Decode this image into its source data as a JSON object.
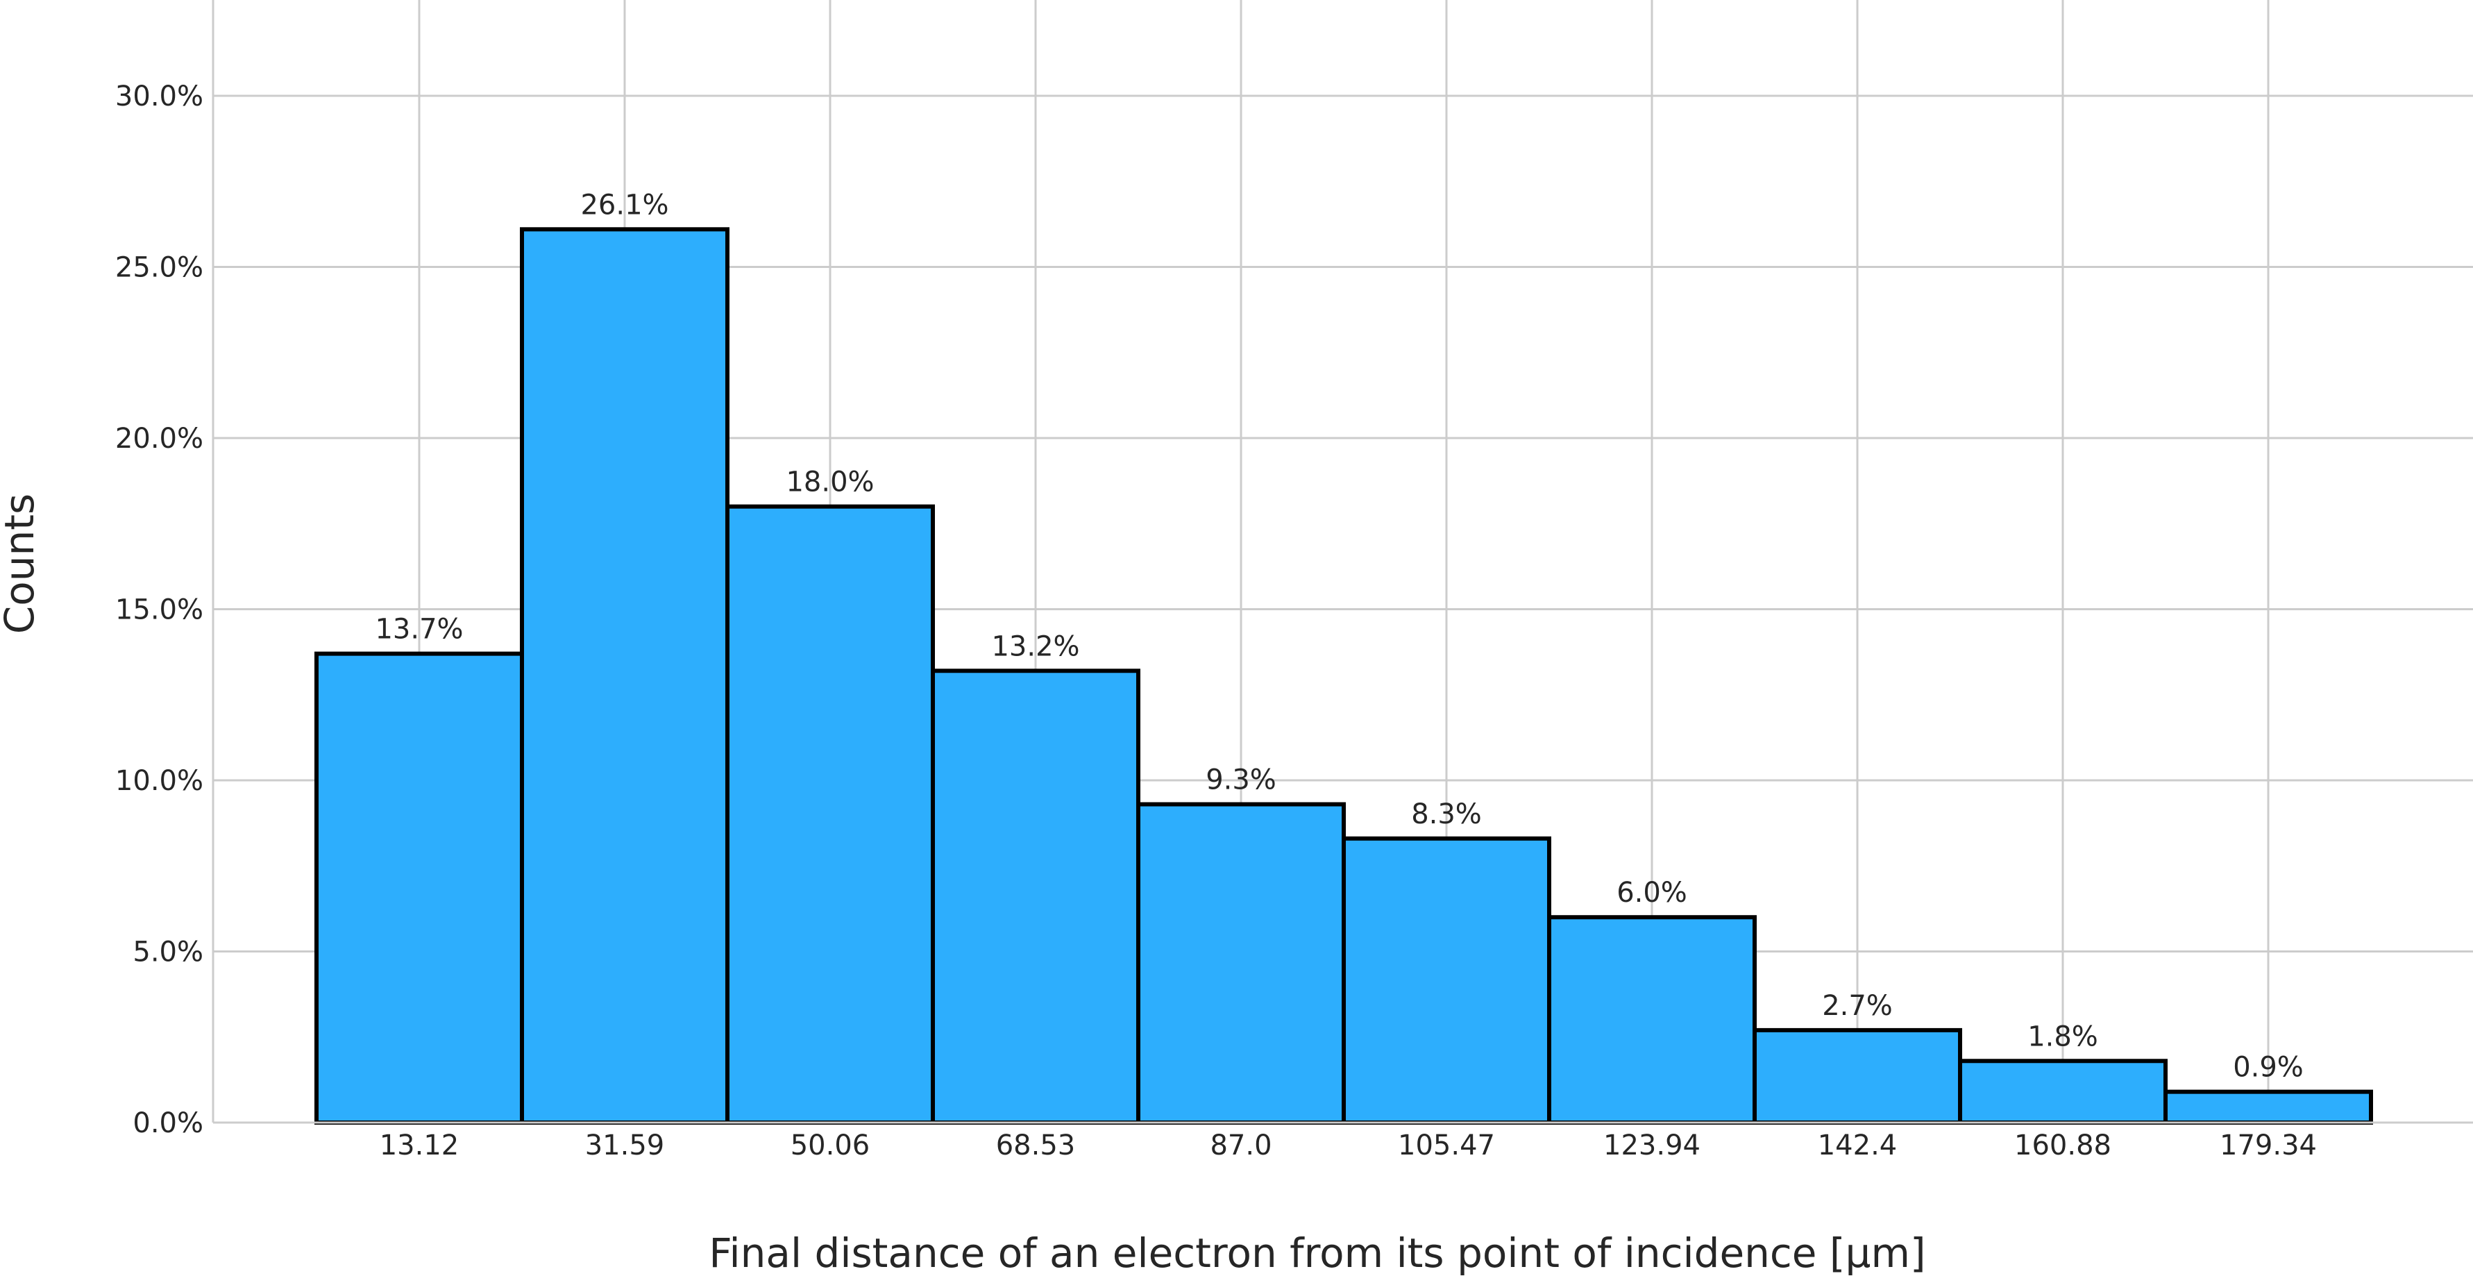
{
  "chart_data": {
    "type": "bar",
    "categories": [
      "13.12",
      "31.59",
      "50.06",
      "68.53",
      "87.0",
      "105.47",
      "123.94",
      "142.4",
      "160.88",
      "179.34"
    ],
    "values": [
      13.7,
      26.1,
      18.0,
      13.2,
      9.3,
      8.3,
      6.0,
      2.7,
      1.8,
      0.9
    ],
    "value_labels": [
      "13.7%",
      "26.1%",
      "18.0%",
      "13.2%",
      "9.3%",
      "8.3%",
      "6.0%",
      "2.7%",
      "1.8%",
      "0.9%"
    ],
    "xlabel": "Final distance of an electron from its point of incidence [μm]",
    "ylabel": "Counts",
    "ylim": [
      0,
      32.8
    ],
    "yticks": [
      0,
      5,
      10,
      15,
      20,
      25,
      30
    ],
    "ytick_labels": [
      "0.0%",
      "5.0%",
      "10.0%",
      "15.0%",
      "20.0%",
      "25.0%",
      "30.0%"
    ],
    "grid": true,
    "bar_color": "#2daefd",
    "edge_color": "#000000",
    "grid_color": "#cccccc"
  }
}
